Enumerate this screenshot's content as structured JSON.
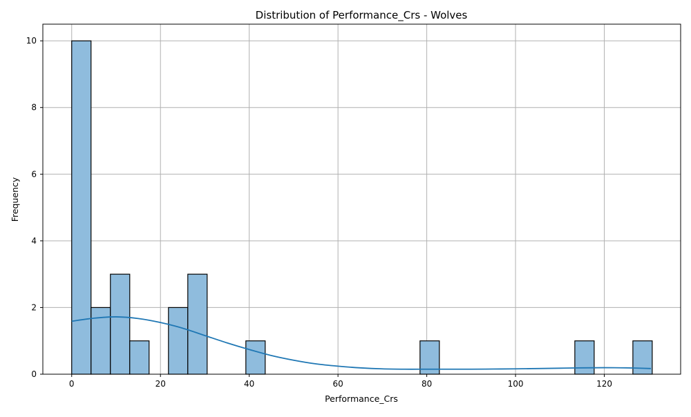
{
  "chart_data": {
    "type": "bar",
    "title": "Distribution of Performance_Crs - Wolves",
    "xlabel": "Performance_Crs",
    "ylabel": "Frequency",
    "xlim": [
      -6.5,
      137.2
    ],
    "ylim": [
      0,
      10.5
    ],
    "xticks": [
      0,
      20,
      40,
      60,
      80,
      100,
      120
    ],
    "yticks": [
      0,
      2,
      4,
      6,
      8,
      10
    ],
    "grid": true,
    "bar_fill": "#8fbcdd",
    "bar_edge": "#000000",
    "kde_color": "#1f77b4",
    "bins": {
      "start": 0,
      "width": 4.36,
      "counts": [
        10,
        2,
        3,
        1,
        0,
        2,
        3,
        0,
        0,
        1,
        0,
        0,
        0,
        0,
        0,
        0,
        0,
        0,
        1,
        0,
        0,
        0,
        0,
        0,
        0,
        0,
        1,
        0,
        0,
        1
      ]
    },
    "kde": {
      "x": [
        0,
        5,
        10,
        15,
        20,
        25,
        30,
        35,
        40,
        45,
        50,
        55,
        60,
        65,
        70,
        75,
        80,
        85,
        90,
        95,
        100,
        105,
        110,
        115,
        120,
        125,
        130.5
      ],
      "y": [
        1.59,
        1.68,
        1.72,
        1.67,
        1.55,
        1.38,
        1.16,
        0.94,
        0.74,
        0.56,
        0.42,
        0.31,
        0.24,
        0.19,
        0.16,
        0.15,
        0.15,
        0.15,
        0.15,
        0.155,
        0.16,
        0.17,
        0.18,
        0.19,
        0.195,
        0.19,
        0.17
      ]
    }
  }
}
